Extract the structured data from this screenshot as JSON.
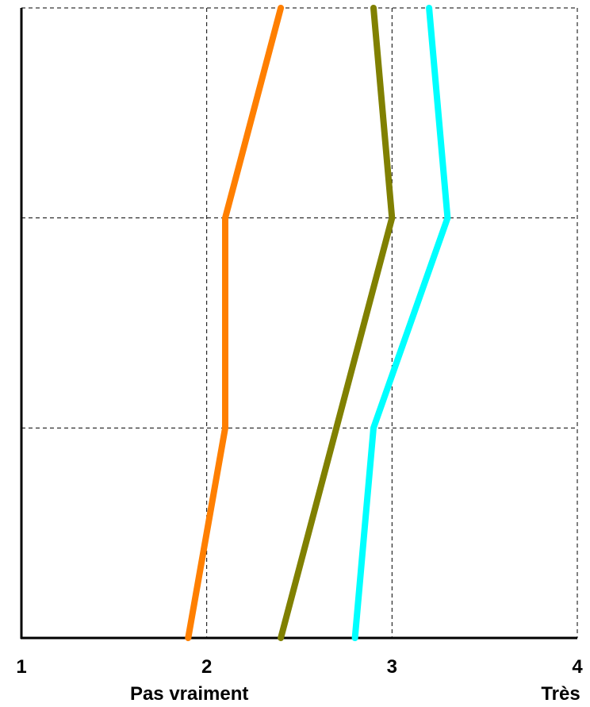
{
  "chart_data": {
    "type": "line",
    "orientation": "vertical-profile",
    "title": "",
    "xlabel": "",
    "ylabel": "",
    "xlim": [
      1,
      4
    ],
    "x_ticks": [
      "1",
      "2",
      "3",
      "4"
    ],
    "x_tick_sublabels": {
      "2": "Pas vraiment",
      "4": "Très"
    },
    "y_levels": 4,
    "grid": true,
    "legend": "none",
    "series": [
      {
        "color": "#ff7f00",
        "values": [
          1.9,
          2.1,
          2.1,
          2.4
        ]
      },
      {
        "color": "#808000",
        "values": [
          2.4,
          2.7,
          3.0,
          2.9
        ]
      },
      {
        "color": "#00ffff",
        "values": [
          2.8,
          2.9,
          3.3,
          3.2
        ]
      }
    ]
  }
}
